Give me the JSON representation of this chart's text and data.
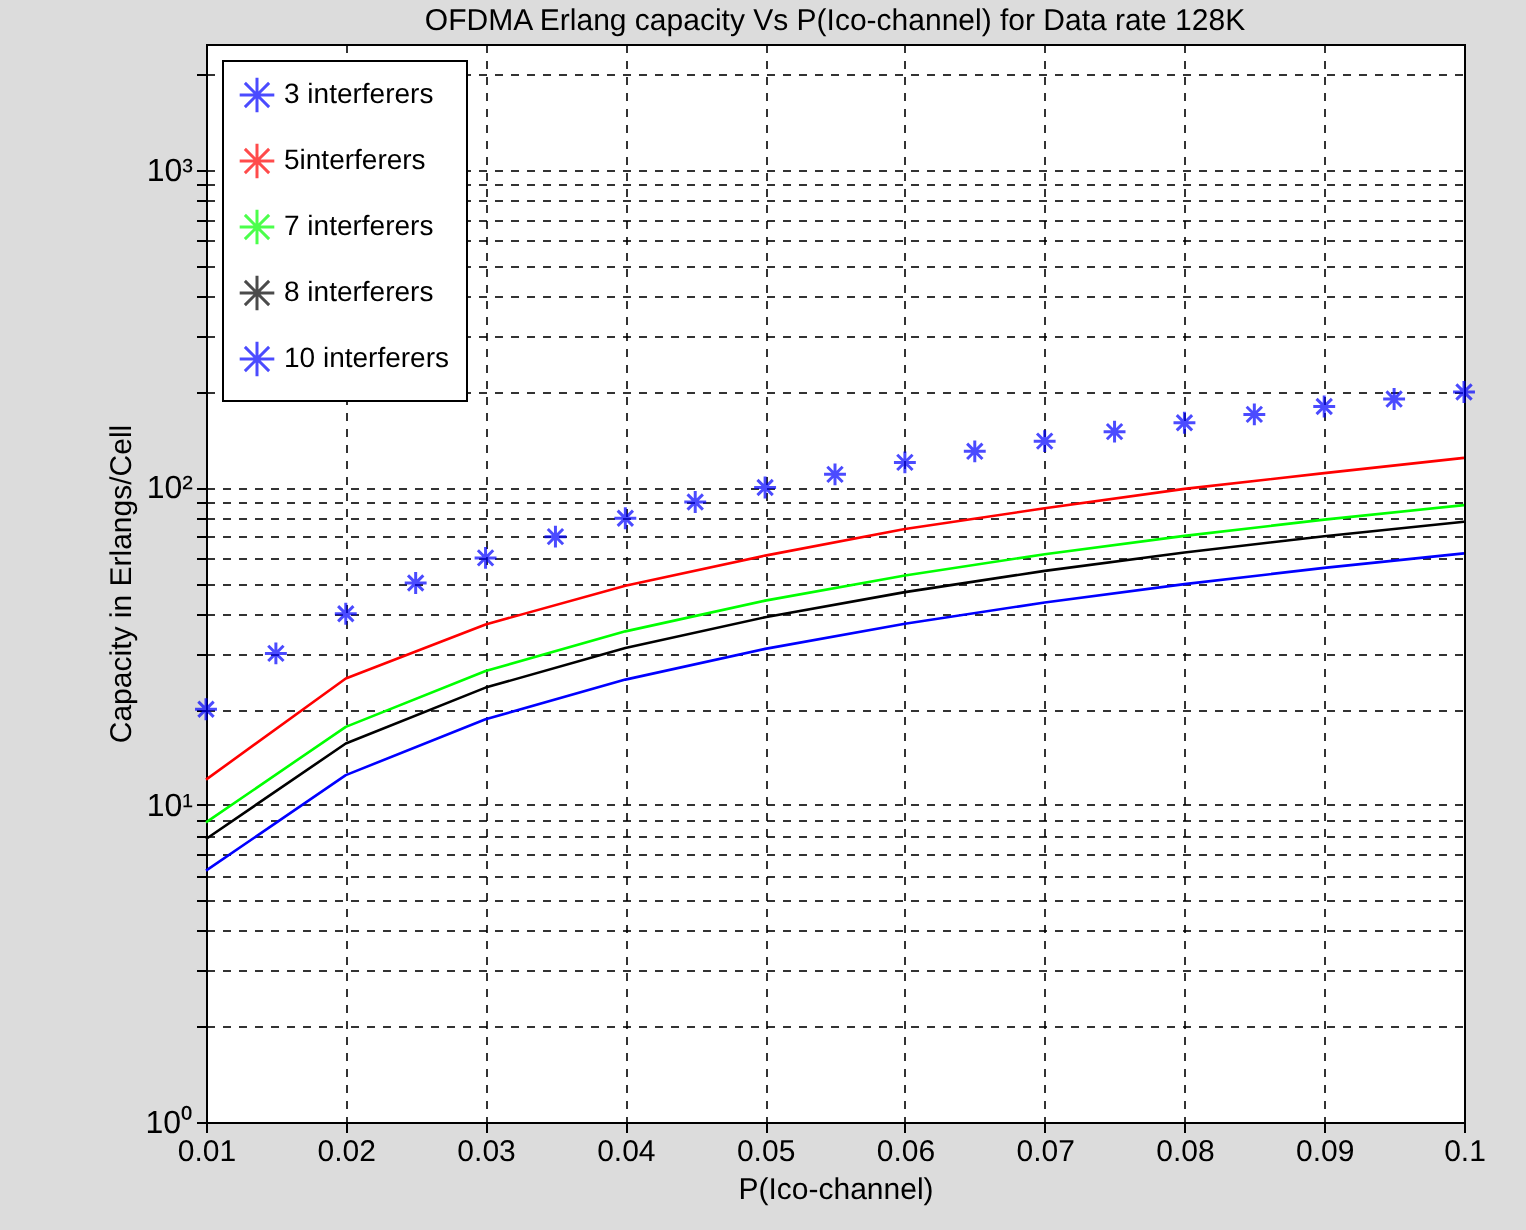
{
  "chart_data": {
    "type": "line",
    "title": "OFDMA Erlang capacity Vs P(Ico-channel) for Data rate 128K",
    "xlabel": "P(Ico-channel)",
    "ylabel": "Capacity in Erlangs/Cell",
    "log": "y",
    "grid": true,
    "legend": "top left",
    "line_style": "solid",
    "xlim": [
      0.01,
      0.1
    ],
    "xticks": [
      0.01,
      0.02,
      0.03,
      0.04,
      0.05,
      0.06,
      0.07,
      0.08,
      0.09,
      0.1
    ],
    "ylim": [
      1,
      2500
    ],
    "yticks": [
      {
        "value": 1,
        "label": "10⁰"
      },
      {
        "value": 2,
        "label": null
      },
      {
        "value": 3,
        "label": null
      },
      {
        "value": 4,
        "label": null
      },
      {
        "value": 5,
        "label": null
      },
      {
        "value": 6,
        "label": null
      },
      {
        "value": 7,
        "label": null
      },
      {
        "value": 8,
        "label": null
      },
      {
        "value": 9,
        "label": null
      },
      {
        "value": 10,
        "label": "10¹"
      },
      {
        "value": 20,
        "label": null
      },
      {
        "value": 30,
        "label": null
      },
      {
        "value": 40,
        "label": null
      },
      {
        "value": 50,
        "label": null
      },
      {
        "value": 60,
        "label": null
      },
      {
        "value": 70,
        "label": null
      },
      {
        "value": 80,
        "label": null
      },
      {
        "value": 90,
        "label": null
      },
      {
        "value": 100,
        "label": "10²"
      },
      {
        "value": 200,
        "label": null
      },
      {
        "value": 300,
        "label": null
      },
      {
        "value": 400,
        "label": null
      },
      {
        "value": 500,
        "label": null
      },
      {
        "value": 600,
        "label": null
      },
      {
        "value": 700,
        "label": null
      },
      {
        "value": 800,
        "label": null
      },
      {
        "value": 900,
        "label": null
      },
      {
        "value": 1000,
        "label": "10³"
      },
      {
        "value": 2000,
        "label": null
      }
    ],
    "series": [
      {
        "name": "3 interferers",
        "type": "scatter",
        "marker": "cross",
        "color": "#0000ff",
        "x": [
          0.01,
          0.015,
          0.02,
          0.025,
          0.03,
          0.035,
          0.04,
          0.045,
          0.05,
          0.055,
          0.06,
          0.065,
          0.07,
          0.075,
          0.08,
          0.085,
          0.09,
          0.095,
          0.1
        ],
        "values": [
          20,
          30,
          40,
          50,
          60,
          70,
          80,
          90,
          100,
          110,
          120,
          130,
          140,
          150,
          160,
          170,
          180,
          190,
          200
        ]
      },
      {
        "name": "5interferers",
        "color": "#ff0000",
        "x": [
          0.01,
          0.02,
          0.03,
          0.04,
          0.05,
          0.06,
          0.07,
          0.08,
          0.09,
          0.1
        ],
        "values": [
          12,
          25,
          37,
          49,
          61,
          74,
          86,
          99,
          111,
          124
        ]
      },
      {
        "name": "7 interferers",
        "color": "#00ff00",
        "x": [
          0.01,
          0.02,
          0.03,
          0.04,
          0.05,
          0.06,
          0.07,
          0.08,
          0.09,
          0.1
        ],
        "values": [
          8.8,
          17.6,
          26.4,
          35.2,
          44,
          52.8,
          61.6,
          70.4,
          79.2,
          88
        ]
      },
      {
        "name": "8 interferers",
        "color": "#000000",
        "x": [
          0.01,
          0.02,
          0.03,
          0.04,
          0.05,
          0.06,
          0.07,
          0.08,
          0.09,
          0.1
        ],
        "values": [
          7.8,
          15.6,
          23.4,
          31.2,
          39,
          46.8,
          54.6,
          62.4,
          70.2,
          78
        ]
      },
      {
        "name": "10 interferers",
        "color": "#0000ff",
        "x": [
          0.01,
          0.02,
          0.03,
          0.04,
          0.05,
          0.06,
          0.07,
          0.08,
          0.09,
          0.1
        ],
        "values": [
          6.2,
          12.4,
          18.6,
          24.8,
          31,
          37.2,
          43.4,
          49.6,
          55.8,
          62
        ]
      }
    ]
  }
}
